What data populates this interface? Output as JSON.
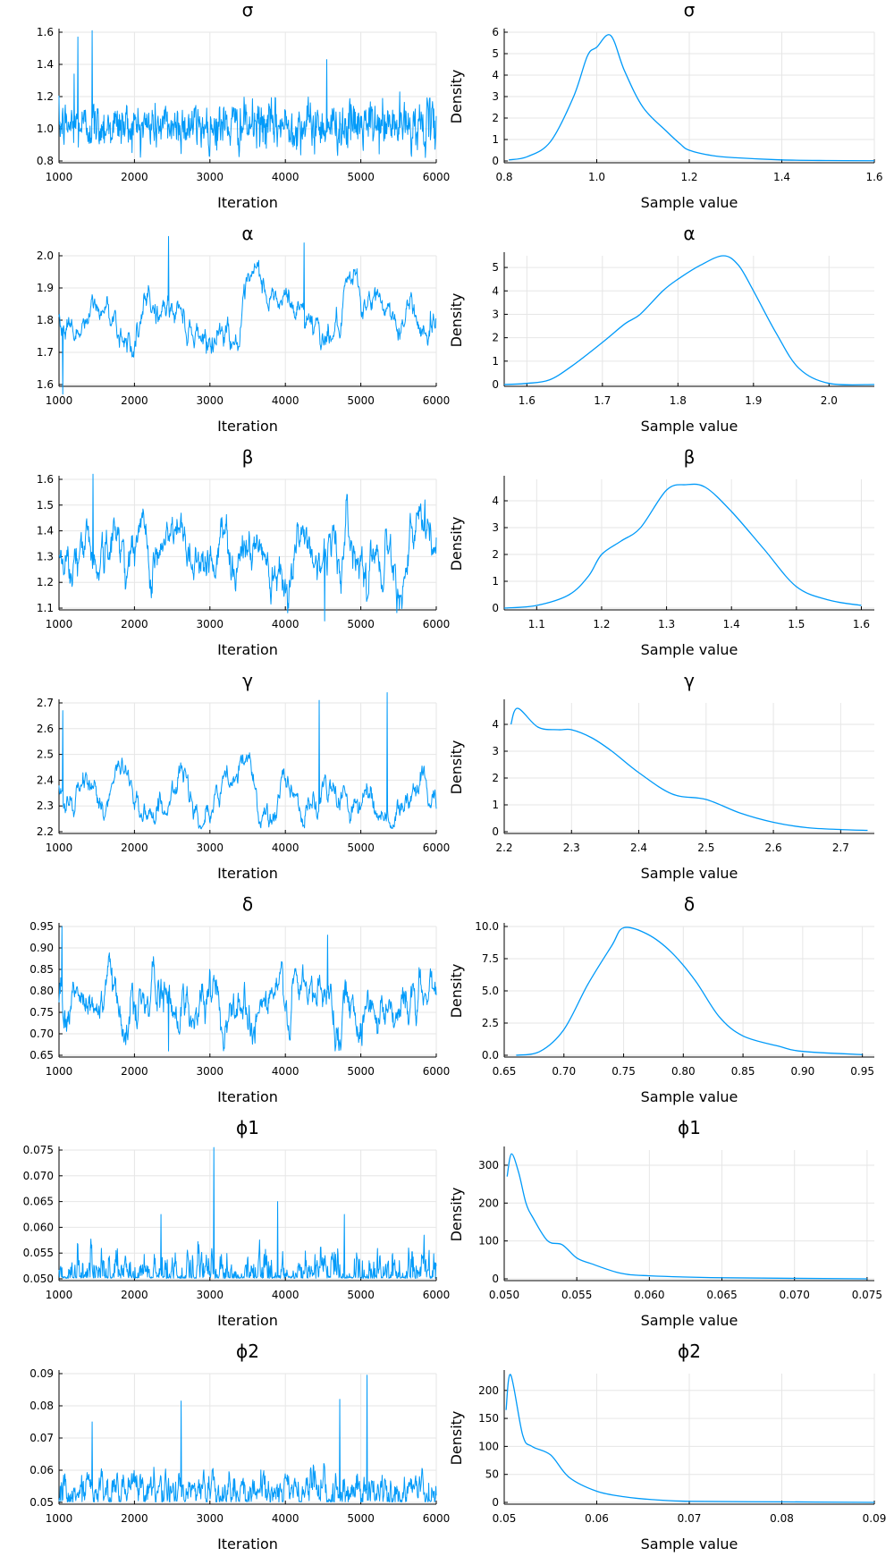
{
  "line_color": "#009af9",
  "chart_data": [
    {
      "type": "line",
      "title": "σ",
      "xlabel": "Iteration",
      "ylabel": "",
      "xlim": [
        1000,
        6000
      ],
      "ylim": [
        0.8,
        1.6
      ],
      "xticks": [
        1000,
        2000,
        3000,
        4000,
        5000,
        6000
      ],
      "yticks": [
        0.8,
        1.0,
        1.2,
        1.4,
        1.6
      ],
      "ytick_labels": [
        "0.8",
        "1.0",
        "1.2",
        "1.4",
        "1.6"
      ],
      "grid": true,
      "trace": {
        "mean": 1.02,
        "sd": 0.07,
        "rho": 0.3,
        "min": 0.82,
        "max": 1.6,
        "spikes": [
          [
            1250,
            1.57
          ],
          [
            1440,
            1.61
          ],
          [
            1200,
            1.34
          ],
          [
            4550,
            1.43
          ]
        ],
        "excursions": []
      }
    },
    {
      "type": "line",
      "title": "σ",
      "xlabel": "Sample value",
      "ylabel": "Density",
      "xlim": [
        0.8,
        1.6
      ],
      "ylim": [
        0,
        6
      ],
      "xticks": [
        0.8,
        1.0,
        1.2,
        1.4,
        1.6
      ],
      "xtick_labels": [
        "0.8",
        "1.0",
        "1.2",
        "1.4",
        "1.6"
      ],
      "yticks": [
        0,
        1,
        2,
        3,
        4,
        5,
        6
      ],
      "ytick_labels": [
        "0",
        "1",
        "2",
        "3",
        "4",
        "5",
        "6"
      ],
      "grid": true,
      "x": [
        0.81,
        0.85,
        0.9,
        0.95,
        0.98,
        1.0,
        1.03,
        1.06,
        1.1,
        1.15,
        1.18,
        1.2,
        1.25,
        1.3,
        1.4,
        1.5,
        1.6
      ],
      "y": [
        0.05,
        0.2,
        0.9,
        3.0,
        4.9,
        5.3,
        5.85,
        4.2,
        2.5,
        1.4,
        0.8,
        0.5,
        0.25,
        0.15,
        0.05,
        0.02,
        0.01
      ]
    },
    {
      "type": "line",
      "title": "α",
      "xlabel": "Iteration",
      "ylabel": "",
      "xlim": [
        1000,
        6000
      ],
      "ylim": [
        1.6,
        2.0
      ],
      "xticks": [
        1000,
        2000,
        3000,
        4000,
        5000,
        6000
      ],
      "yticks": [
        1.6,
        1.7,
        1.8,
        1.9,
        2.0
      ],
      "ytick_labels": [
        "1.6",
        "1.7",
        "1.8",
        "1.9",
        "2.0"
      ],
      "grid": true,
      "trace": {
        "mean": 1.81,
        "sd": 0.06,
        "rho": 0.97,
        "min": 1.57,
        "max": 2.06,
        "spikes": [
          [
            2450,
            2.06
          ],
          [
            4250,
            2.04
          ],
          [
            1050,
            1.57
          ]
        ],
        "excursions": []
      }
    },
    {
      "type": "line",
      "title": "α",
      "xlabel": "Sample value",
      "ylabel": "Density",
      "xlim": [
        1.57,
        2.06
      ],
      "ylim": [
        0,
        5.5
      ],
      "xticks": [
        1.6,
        1.7,
        1.8,
        1.9,
        2.0
      ],
      "xtick_labels": [
        "1.6",
        "1.7",
        "1.8",
        "1.9",
        "2.0"
      ],
      "yticks": [
        0,
        1,
        2,
        3,
        4,
        5
      ],
      "ytick_labels": [
        "0",
        "1",
        "2",
        "3",
        "4",
        "5"
      ],
      "grid": true,
      "x": [
        1.57,
        1.6,
        1.63,
        1.66,
        1.7,
        1.73,
        1.75,
        1.78,
        1.8,
        1.83,
        1.86,
        1.88,
        1.9,
        1.93,
        1.96,
        2.0,
        2.06
      ],
      "y": [
        0.0,
        0.05,
        0.2,
        0.8,
        1.8,
        2.6,
        3.0,
        4.0,
        4.5,
        5.1,
        5.5,
        5.1,
        4.0,
        2.2,
        0.7,
        0.05,
        0.0
      ]
    },
    {
      "type": "line",
      "title": "β",
      "xlabel": "Iteration",
      "ylabel": "",
      "xlim": [
        1000,
        6000
      ],
      "ylim": [
        1.1,
        1.6
      ],
      "xticks": [
        1000,
        2000,
        3000,
        4000,
        5000,
        6000
      ],
      "yticks": [
        1.1,
        1.2,
        1.3,
        1.4,
        1.5,
        1.6
      ],
      "ytick_labels": [
        "1.1",
        "1.2",
        "1.3",
        "1.4",
        "1.5",
        "1.6"
      ],
      "grid": true,
      "trace": {
        "mean": 1.34,
        "sd": 0.08,
        "rho": 0.92,
        "min": 1.05,
        "max": 1.62,
        "spikes": [
          [
            1450,
            1.62
          ],
          [
            4520,
            1.05
          ],
          [
            5850,
            1.52
          ]
        ],
        "excursions": []
      }
    },
    {
      "type": "line",
      "title": "β",
      "xlabel": "Sample value",
      "ylabel": "Density",
      "xlim": [
        1.05,
        1.62
      ],
      "ylim": [
        0,
        4.8
      ],
      "xticks": [
        1.1,
        1.2,
        1.3,
        1.4,
        1.5,
        1.6
      ],
      "xtick_labels": [
        "1.1",
        "1.2",
        "1.3",
        "1.4",
        "1.5",
        "1.6"
      ],
      "yticks": [
        0,
        1,
        2,
        3,
        4
      ],
      "ytick_labels": [
        "0",
        "1",
        "2",
        "3",
        "4"
      ],
      "grid": true,
      "x": [
        1.05,
        1.1,
        1.15,
        1.18,
        1.2,
        1.23,
        1.26,
        1.3,
        1.33,
        1.36,
        1.4,
        1.45,
        1.5,
        1.55,
        1.6
      ],
      "y": [
        0.0,
        0.1,
        0.5,
        1.2,
        2.0,
        2.5,
        3.0,
        4.4,
        4.6,
        4.5,
        3.6,
        2.2,
        0.8,
        0.3,
        0.1
      ]
    },
    {
      "type": "line",
      "title": "γ",
      "xlabel": "Iteration",
      "ylabel": "",
      "xlim": [
        1000,
        6000
      ],
      "ylim": [
        2.2,
        2.7
      ],
      "xticks": [
        1000,
        2000,
        3000,
        4000,
        5000,
        6000
      ],
      "yticks": [
        2.2,
        2.3,
        2.4,
        2.5,
        2.6,
        2.7
      ],
      "ytick_labels": [
        "2.2",
        "2.3",
        "2.4",
        "2.5",
        "2.6",
        "2.7"
      ],
      "grid": true,
      "trace": {
        "mean": 2.34,
        "sd": 0.1,
        "rho": 0.985,
        "min": 2.21,
        "max": 2.74,
        "spikes": [
          [
            4450,
            2.71
          ],
          [
            5350,
            2.74
          ],
          [
            1050,
            2.67
          ]
        ],
        "excursions": []
      }
    },
    {
      "type": "line",
      "title": "γ",
      "xlabel": "Sample value",
      "ylabel": "Density",
      "xlim": [
        2.2,
        2.75
      ],
      "ylim": [
        0,
        4.8
      ],
      "xticks": [
        2.2,
        2.3,
        2.4,
        2.5,
        2.6,
        2.7
      ],
      "xtick_labels": [
        "2.2",
        "2.3",
        "2.4",
        "2.5",
        "2.6",
        "2.7"
      ],
      "yticks": [
        0,
        1,
        2,
        3,
        4
      ],
      "ytick_labels": [
        "0",
        "1",
        "2",
        "3",
        "4"
      ],
      "grid": true,
      "x": [
        2.21,
        2.22,
        2.25,
        2.28,
        2.3,
        2.33,
        2.36,
        2.4,
        2.45,
        2.5,
        2.55,
        2.6,
        2.65,
        2.7,
        2.74
      ],
      "y": [
        4.0,
        4.6,
        3.9,
        3.8,
        3.8,
        3.5,
        3.0,
        2.2,
        1.4,
        1.2,
        0.7,
        0.35,
        0.15,
        0.08,
        0.05
      ]
    },
    {
      "type": "line",
      "title": "δ",
      "xlabel": "Iteration",
      "ylabel": "",
      "xlim": [
        1000,
        6000
      ],
      "ylim": [
        0.65,
        0.95
      ],
      "xticks": [
        1000,
        2000,
        3000,
        4000,
        5000,
        6000
      ],
      "yticks": [
        0.65,
        0.7,
        0.75,
        0.8,
        0.85,
        0.9,
        0.95
      ],
      "ytick_labels": [
        "0.65",
        "0.70",
        "0.75",
        "0.80",
        "0.85",
        "0.90",
        "0.95"
      ],
      "grid": true,
      "trace": {
        "mean": 0.775,
        "sd": 0.04,
        "rho": 0.9,
        "min": 0.66,
        "max": 0.95,
        "spikes": [
          [
            1040,
            0.95
          ],
          [
            4560,
            0.93
          ],
          [
            2450,
            0.66
          ]
        ],
        "excursions": []
      }
    },
    {
      "type": "line",
      "title": "δ",
      "xlabel": "Sample value",
      "ylabel": "Density",
      "xlim": [
        0.65,
        0.96
      ],
      "ylim": [
        0,
        10
      ],
      "xticks": [
        0.65,
        0.7,
        0.75,
        0.8,
        0.85,
        0.9,
        0.95
      ],
      "xtick_labels": [
        "0.65",
        "0.70",
        "0.75",
        "0.80",
        "0.85",
        "0.90",
        "0.95"
      ],
      "yticks": [
        0,
        2.5,
        5,
        7.5,
        10
      ],
      "ytick_labels": [
        "0.0",
        "2.5",
        "5.0",
        "7.5",
        "10.0"
      ],
      "grid": true,
      "x": [
        0.66,
        0.68,
        0.7,
        0.72,
        0.74,
        0.75,
        0.77,
        0.79,
        0.81,
        0.83,
        0.85,
        0.88,
        0.9,
        0.95
      ],
      "y": [
        0.0,
        0.3,
        2.0,
        5.5,
        8.5,
        9.9,
        9.4,
        8.0,
        5.8,
        3.0,
        1.5,
        0.7,
        0.3,
        0.05
      ]
    },
    {
      "type": "line",
      "title": "ϕ1",
      "xlabel": "Iteration",
      "ylabel": "",
      "xlim": [
        1000,
        6000
      ],
      "ylim": [
        0.05,
        0.075
      ],
      "xticks": [
        1000,
        2000,
        3000,
        4000,
        5000,
        6000
      ],
      "yticks": [
        0.05,
        0.055,
        0.06,
        0.065,
        0.07,
        0.075
      ],
      "ytick_labels": [
        "0.050",
        "0.055",
        "0.060",
        "0.065",
        "0.070",
        "0.075"
      ],
      "grid": true,
      "trace": {
        "mean": 0.0508,
        "sd": 0.0022,
        "rho": 0.6,
        "min": 0.0501,
        "max": 0.0755,
        "spikes": [
          [
            3050,
            0.0755
          ],
          [
            2350,
            0.0625
          ],
          [
            3900,
            0.065
          ],
          [
            4780,
            0.0625
          ]
        ],
        "excursions": []
      }
    },
    {
      "type": "line",
      "title": "ϕ1",
      "xlabel": "Sample value",
      "ylabel": "Density",
      "xlim": [
        0.05,
        0.0755
      ],
      "ylim": [
        0,
        340
      ],
      "xticks": [
        0.05,
        0.055,
        0.06,
        0.065,
        0.07,
        0.075
      ],
      "xtick_labels": [
        "0.050",
        "0.055",
        "0.060",
        "0.065",
        "0.070",
        "0.075"
      ],
      "yticks": [
        0,
        100,
        200,
        300
      ],
      "ytick_labels": [
        "0",
        "100",
        "200",
        "300"
      ],
      "grid": true,
      "x": [
        0.0502,
        0.0505,
        0.051,
        0.0515,
        0.052,
        0.053,
        0.054,
        0.055,
        0.056,
        0.058,
        0.06,
        0.065,
        0.075
      ],
      "y": [
        270,
        330,
        280,
        200,
        160,
        100,
        90,
        55,
        40,
        15,
        8,
        3,
        0
      ]
    },
    {
      "type": "line",
      "title": "ϕ2",
      "xlabel": "Iteration",
      "ylabel": "",
      "xlim": [
        1000,
        6000
      ],
      "ylim": [
        0.05,
        0.09
      ],
      "xticks": [
        1000,
        2000,
        3000,
        4000,
        5000,
        6000
      ],
      "yticks": [
        0.05,
        0.06,
        0.07,
        0.08,
        0.09
      ],
      "ytick_labels": [
        "0.05",
        "0.06",
        "0.07",
        "0.08",
        "0.09"
      ],
      "grid": true,
      "trace": {
        "mean": 0.0535,
        "sd": 0.003,
        "rho": 0.7,
        "min": 0.0501,
        "max": 0.0895,
        "spikes": [
          [
            1440,
            0.075
          ],
          [
            2620,
            0.0815
          ],
          [
            4720,
            0.082
          ],
          [
            5080,
            0.0895
          ]
        ],
        "excursions": []
      }
    },
    {
      "type": "line",
      "title": "ϕ2",
      "xlabel": "Sample value",
      "ylabel": "Density",
      "xlim": [
        0.05,
        0.09
      ],
      "ylim": [
        0,
        230
      ],
      "xticks": [
        0.05,
        0.06,
        0.07,
        0.08,
        0.09
      ],
      "xtick_labels": [
        "0.05",
        "0.06",
        "0.07",
        "0.08",
        "0.09"
      ],
      "yticks": [
        0,
        50,
        100,
        150,
        200
      ],
      "ytick_labels": [
        "0",
        "50",
        "100",
        "150",
        "200"
      ],
      "grid": true,
      "x": [
        0.0502,
        0.0507,
        0.052,
        0.053,
        0.055,
        0.057,
        0.06,
        0.063,
        0.066,
        0.07,
        0.08,
        0.09
      ],
      "y": [
        165,
        228,
        120,
        100,
        85,
        45,
        20,
        10,
        5,
        2,
        1,
        0
      ]
    }
  ]
}
